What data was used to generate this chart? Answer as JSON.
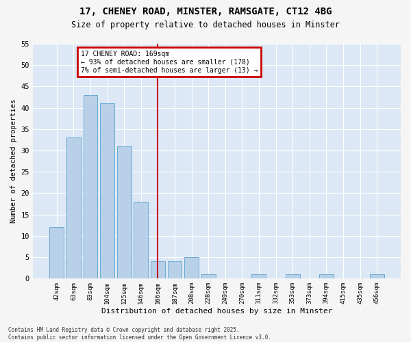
{
  "title_line1": "17, CHENEY ROAD, MINSTER, RAMSGATE, CT12 4BG",
  "title_line2": "Size of property relative to detached houses in Minster",
  "xlabel": "Distribution of detached houses by size in Minster",
  "ylabel": "Number of detached properties",
  "bar_labels": [
    "42sqm",
    "63sqm",
    "83sqm",
    "104sqm",
    "125sqm",
    "146sqm",
    "166sqm",
    "187sqm",
    "208sqm",
    "228sqm",
    "249sqm",
    "270sqm",
    "311sqm",
    "332sqm",
    "353sqm",
    "373sqm",
    "394sqm",
    "415sqm",
    "435sqm",
    "456sqm"
  ],
  "bar_values": [
    12,
    33,
    43,
    41,
    31,
    18,
    4,
    4,
    5,
    1,
    0,
    0,
    1,
    0,
    1,
    0,
    1,
    0,
    0,
    1
  ],
  "bar_color": "#b8d0e8",
  "bar_edgecolor": "#6aaad4",
  "vline_x": 6,
  "vline_color": "#cc0000",
  "annotation_title": "17 CHENEY ROAD: 169sqm",
  "annotation_line1": "← 93% of detached houses are smaller (178)",
  "annotation_line2": "7% of semi-detached houses are larger (13) →",
  "annotation_box_edgecolor": "#cc0000",
  "ylim": [
    0,
    55
  ],
  "yticks": [
    0,
    5,
    10,
    15,
    20,
    25,
    30,
    35,
    40,
    45,
    50,
    55
  ],
  "plot_bg_color": "#dce8f5",
  "fig_bg_color": "#f5f5f5",
  "grid_color": "#ffffff",
  "footer_line1": "Contains HM Land Registry data © Crown copyright and database right 2025.",
  "footer_line2": "Contains public sector information licensed under the Open Government Licence v3.0."
}
